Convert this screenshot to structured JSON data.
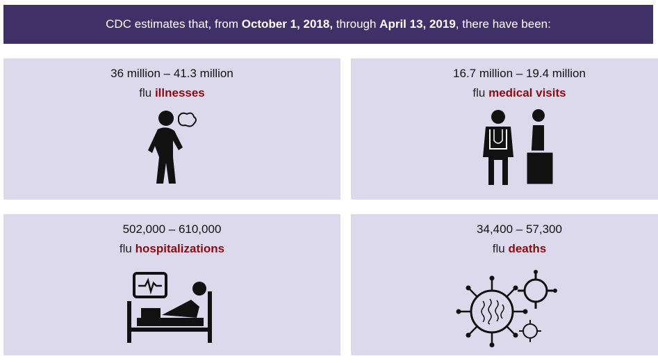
{
  "header": {
    "segments": [
      "CDC estimates that, from ",
      "October 1, 2018,",
      " through ",
      "April 13, 2019",
      ", there have been:"
    ]
  },
  "cards": [
    {
      "range": "36 million – 41.3 million",
      "prefix": "flu",
      "keyword": "illnesses"
    },
    {
      "range": "16.7 million – 19.4 million",
      "prefix": "flu",
      "keyword": "medical visits"
    },
    {
      "range": "502,000 – 610,000",
      "prefix": "flu",
      "keyword": "hospitalizations"
    },
    {
      "range": "34,400 – 57,300",
      "prefix": "flu",
      "keyword": "deaths"
    }
  ]
}
